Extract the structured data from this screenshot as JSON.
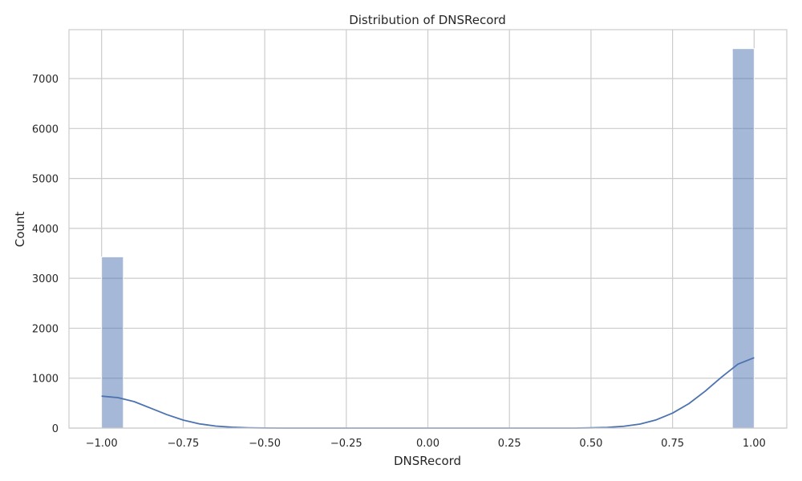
{
  "chart_data": {
    "type": "bar",
    "title": "Distribution of DNSRecord",
    "xlabel": "DNSRecord",
    "ylabel": "Count",
    "xlim": [
      -1.1,
      1.1
    ],
    "ylim": [
      0,
      7980
    ],
    "x_ticks": [
      -1.0,
      -0.75,
      -0.5,
      -0.25,
      0.0,
      0.25,
      0.5,
      0.75,
      1.0
    ],
    "x_tick_labels": [
      "−1.00",
      "−0.75",
      "−0.50",
      "−0.25",
      "0.00",
      "0.25",
      "0.50",
      "0.75",
      "1.00"
    ],
    "y_ticks": [
      0,
      1000,
      2000,
      3000,
      4000,
      5000,
      6000,
      7000
    ],
    "y_tick_labels": [
      "0",
      "1000",
      "2000",
      "3000",
      "4000",
      "5000",
      "6000",
      "7000"
    ],
    "grid": true,
    "bar_color": "#4c72b0",
    "bar_opacity": 0.5,
    "line_color": "#4c72b0",
    "bins": [
      {
        "x0": -1.0,
        "x1": -0.9333,
        "count": 3430
      },
      {
        "x0": 0.9333,
        "x1": 1.0,
        "count": 7600
      }
    ],
    "series": [
      {
        "kind": "kde",
        "x": [
          -1.0,
          -0.95,
          -0.9,
          -0.85,
          -0.8,
          -0.75,
          -0.7,
          -0.65,
          -0.6,
          -0.55,
          -0.5,
          -0.45,
          -0.4,
          0.4,
          0.45,
          0.5,
          0.55,
          0.6,
          0.65,
          0.7,
          0.75,
          0.8,
          0.85,
          0.9,
          0.95,
          1.0
        ],
        "y": [
          640,
          610,
          530,
          400,
          270,
          160,
          85,
          40,
          17,
          6,
          2,
          0,
          0,
          0,
          0,
          5,
          14,
          36,
          80,
          165,
          300,
          490,
          740,
          1020,
          1280,
          1410
        ]
      }
    ]
  }
}
